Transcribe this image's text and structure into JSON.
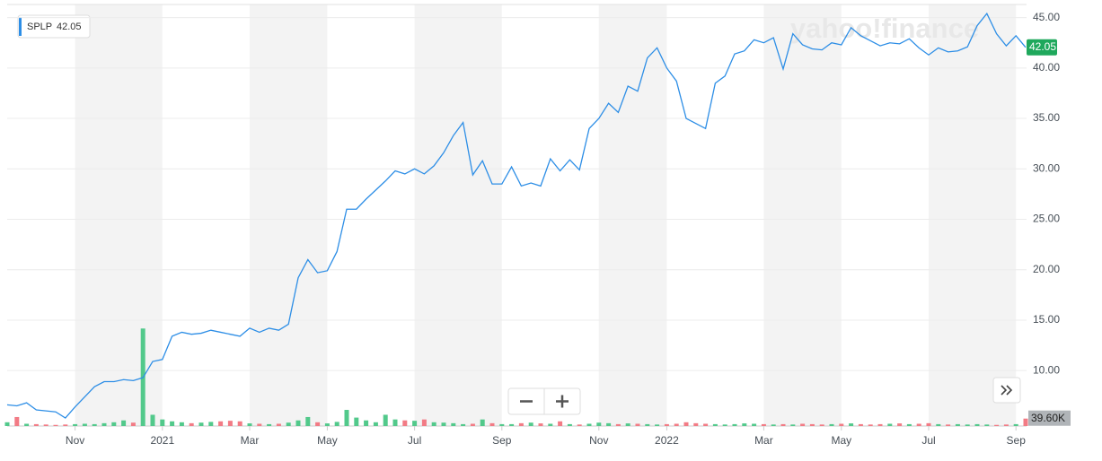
{
  "chart_data": {
    "type": "line",
    "watermark": "yahoo!finance",
    "categories": [
      null,
      null,
      null,
      null,
      null,
      null,
      null,
      "Nov",
      null,
      null,
      null,
      null,
      null,
      null,
      null,
      null,
      "2021",
      null,
      null,
      null,
      null,
      null,
      null,
      null,
      null,
      "Mar",
      null,
      null,
      null,
      null,
      null,
      null,
      null,
      "May",
      null,
      null,
      null,
      null,
      null,
      null,
      null,
      null,
      "Jul",
      null,
      null,
      null,
      null,
      null,
      null,
      null,
      null,
      "Sep",
      null,
      null,
      null,
      null,
      null,
      null,
      null,
      null,
      null,
      "Nov",
      null,
      null,
      null,
      null,
      null,
      null,
      "2022",
      null,
      null,
      null,
      null,
      null,
      null,
      null,
      null,
      null,
      "Mar",
      null,
      null,
      null,
      null,
      null,
      null,
      null,
      "May",
      null,
      null,
      null,
      null,
      null,
      null,
      null,
      null,
      "Jul",
      null,
      null,
      null,
      null,
      null,
      null,
      null,
      null,
      "Sep",
      null
    ],
    "series": [
      {
        "name": "SPLP",
        "color": "#2d8ee6",
        "values": [
          6.6,
          6.5,
          6.8,
          6.1,
          6.0,
          5.9,
          5.3,
          6.4,
          7.4,
          8.4,
          8.9,
          8.9,
          9.1,
          9.0,
          9.3,
          10.9,
          11.1,
          13.4,
          13.8,
          13.6,
          13.7,
          14.0,
          13.8,
          13.6,
          13.4,
          14.2,
          13.8,
          14.2,
          14.0,
          14.6,
          19.2,
          21.0,
          19.7,
          19.9,
          21.8,
          26.0,
          26.0,
          27.0,
          27.9,
          28.8,
          29.8,
          29.5,
          30.0,
          29.5,
          30.3,
          31.6,
          33.3,
          34.6,
          29.4,
          30.8,
          28.5,
          28.5,
          30.2,
          28.3,
          28.6,
          28.3,
          31.0,
          29.8,
          30.9,
          29.9,
          34.0,
          35.0,
          36.5,
          35.6,
          38.2,
          37.7,
          41.0,
          42.0,
          40.0,
          38.7,
          35.0,
          34.5,
          34.0,
          38.5,
          39.2,
          41.4,
          41.7,
          42.8,
          42.5,
          43.0,
          39.9,
          43.4,
          42.3,
          41.9,
          41.8,
          42.5,
          42.3,
          44.0,
          43.2,
          42.7,
          42.2,
          42.5,
          42.4,
          42.9,
          42.0,
          41.3,
          42.0,
          41.6,
          41.7,
          42.1,
          44.2,
          45.4,
          43.4,
          42.2,
          43.2,
          42.05
        ]
      },
      {
        "axis": "y2",
        "up_color": "#52c98b",
        "down_color": "#f27b85",
        "values": [
          20,
          48,
          12,
          10,
          8,
          6,
          8,
          10,
          12,
          10,
          15,
          20,
          30,
          18,
          520,
          60,
          35,
          25,
          20,
          15,
          18,
          22,
          25,
          28,
          25,
          14,
          12,
          10,
          12,
          18,
          30,
          48,
          20,
          14,
          22,
          86,
          45,
          30,
          20,
          60,
          35,
          30,
          28,
          35,
          20,
          18,
          15,
          10,
          12,
          35,
          15,
          10,
          10,
          15,
          18,
          14,
          12,
          25,
          10,
          8,
          12,
          18,
          15,
          10,
          14,
          12,
          10,
          8,
          10,
          12,
          20,
          15,
          12,
          10,
          8,
          10,
          14,
          12,
          10,
          8,
          10,
          8,
          12,
          10,
          8,
          10,
          12,
          14,
          10,
          8,
          10,
          12,
          14,
          10,
          12,
          15,
          10,
          8,
          10,
          8,
          10,
          8,
          6,
          8,
          10,
          39.6
        ]
      }
    ],
    "ylim": [
      4.5,
      46.3
    ],
    "yticks": [
      {
        "value": 10,
        "label": "10.00"
      },
      {
        "value": 15,
        "label": "15.00"
      },
      {
        "value": 20,
        "label": "20.00"
      },
      {
        "value": 25,
        "label": "25.00"
      },
      {
        "value": 30,
        "label": "30.00"
      },
      {
        "value": 35,
        "label": "35.00"
      },
      {
        "value": 40,
        "label": "40.00"
      },
      {
        "value": 45,
        "label": "45.00"
      }
    ],
    "y2lim": [
      0,
      550
    ],
    "y2ticks": [
      {
        "value": 39.6,
        "label": "39.60K"
      }
    ],
    "grid": true
  }
}
